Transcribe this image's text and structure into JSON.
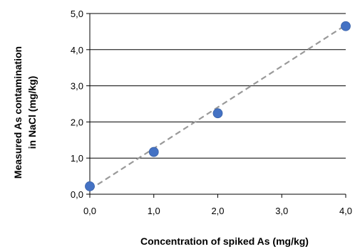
{
  "chart_data": {
    "type": "scatter",
    "title": "",
    "xlabel": "Concentration of spiked As (mg/kg)",
    "ylabel_lines": [
      "Measured As contamination",
      "in NaCl (mg/kg)"
    ],
    "xlim": [
      0,
      4
    ],
    "ylim": [
      0,
      5
    ],
    "x_ticks": [
      "0,0",
      "1,0",
      "2,0",
      "3,0",
      "4,0"
    ],
    "x_tick_values": [
      0,
      1,
      2,
      3,
      4
    ],
    "y_ticks": [
      "0,0",
      "1,0",
      "2,0",
      "3,0",
      "4,0",
      "5,0"
    ],
    "y_tick_values": [
      0,
      1,
      2,
      3,
      4,
      5
    ],
    "grid": "horizontal",
    "series": [
      {
        "points": [
          {
            "x": 0,
            "y": 0.22
          },
          {
            "x": 1,
            "y": 1.17
          },
          {
            "x": 2,
            "y": 2.24
          },
          {
            "x": 4,
            "y": 4.65
          }
        ],
        "color": "#4472c4"
      }
    ],
    "trendline": {
      "style": "dashed",
      "color": "#999999",
      "from": {
        "x": 0,
        "y": 0.13
      },
      "to": {
        "x": 4,
        "y": 4.68
      }
    }
  }
}
